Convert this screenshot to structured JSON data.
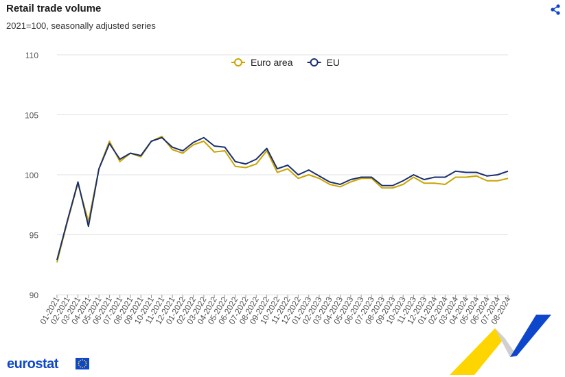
{
  "header": {
    "title": "Retail trade volume",
    "subtitle": "2021=100, seasonally adjusted series"
  },
  "toolbar": {
    "share_icon": "share-icon"
  },
  "footer": {
    "brand": "eurostat",
    "flag_icon": "eu-flag-icon"
  },
  "colors": {
    "euro_area": "#c9a400",
    "eu": "#1a2f6e",
    "grid": "#e0e0e0",
    "brand": "#0e47cb",
    "swoosh_yellow": "#ffd500",
    "swoosh_blue": "#0e47cb",
    "swoosh_grey": "#cfcfcf"
  },
  "chart_data": {
    "type": "line",
    "title": "Retail trade volume",
    "subtitle": "2021=100, seasonally adjusted series",
    "xlabel": "",
    "ylabel": "",
    "ylim": [
      90,
      110
    ],
    "yticks": [
      90,
      95,
      100,
      105,
      110
    ],
    "grid": true,
    "legend_position": "top-center",
    "categories": [
      "01-2021",
      "02-2021",
      "03-2021",
      "04-2021",
      "05-2021",
      "06-2021",
      "07-2021",
      "08-2021",
      "09-2021",
      "10-2021",
      "11-2021",
      "12-2021",
      "01-2022",
      "02-2022",
      "03-2022",
      "04-2022",
      "05-2022",
      "06-2022",
      "07-2022",
      "08-2022",
      "09-2022",
      "10-2022",
      "11-2022",
      "12-2022",
      "01-2023",
      "02-2023",
      "03-2023",
      "04-2023",
      "05-2023",
      "06-2023",
      "07-2023",
      "08-2023",
      "09-2023",
      "10-2023",
      "11-2023",
      "12-2023",
      "01-2024",
      "02-2024",
      "03-2024",
      "04-2024",
      "05-2024",
      "06-2024",
      "07-2024",
      "08-2024"
    ],
    "series": [
      {
        "name": "Euro area",
        "color": "#c9a400",
        "values": [
          92.7,
          96.1,
          99.3,
          96.1,
          100.5,
          102.8,
          101.1,
          101.8,
          101.5,
          102.8,
          103.2,
          102.1,
          101.8,
          102.5,
          102.8,
          101.9,
          102.0,
          100.7,
          100.6,
          100.9,
          102.0,
          100.2,
          100.5,
          99.7,
          100.0,
          99.7,
          99.2,
          99.0,
          99.4,
          99.7,
          99.7,
          98.9,
          98.9,
          99.2,
          99.8,
          99.3,
          99.3,
          99.2,
          99.8,
          99.8,
          99.9,
          99.5,
          99.5,
          99.7
        ]
      },
      {
        "name": "EU",
        "color": "#1a2f6e",
        "values": [
          92.9,
          96.2,
          99.4,
          95.7,
          100.5,
          102.6,
          101.3,
          101.8,
          101.6,
          102.8,
          103.1,
          102.3,
          102.0,
          102.7,
          103.1,
          102.4,
          102.3,
          101.1,
          100.9,
          101.3,
          102.2,
          100.5,
          100.8,
          100.0,
          100.4,
          99.9,
          99.4,
          99.2,
          99.6,
          99.8,
          99.8,
          99.1,
          99.1,
          99.5,
          100.0,
          99.6,
          99.8,
          99.8,
          100.3,
          100.2,
          100.2,
          99.9,
          100.0,
          100.3
        ]
      }
    ]
  }
}
